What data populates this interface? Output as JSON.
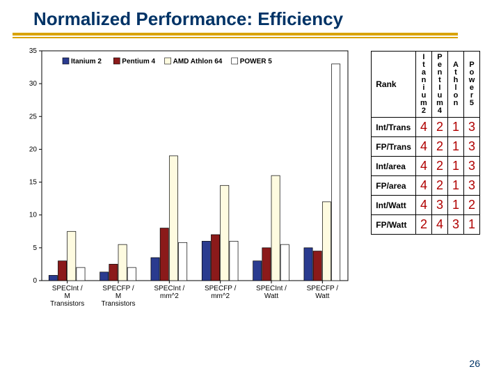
{
  "title": "Normalized Performance: Efficiency",
  "page_number": "26",
  "chart": {
    "type": "bar-grouped",
    "ylim": [
      0,
      35
    ],
    "ytick_step": 5,
    "background_color": "#ffffff",
    "grid_color": "#000000",
    "plot_border_color": "#000000",
    "title_fontsize": 26,
    "axis_fontsize": 10,
    "series": [
      {
        "name": "Itanium 2",
        "color": "#2a3b8f",
        "pattern": "solid"
      },
      {
        "name": "Pentium 4",
        "color": "#8b1a1a",
        "pattern": "solid"
      },
      {
        "name": "AMD Athlon 64",
        "color": "#fefbe0",
        "pattern": "outline"
      },
      {
        "name": "POWER 5",
        "color": "#ffffff",
        "pattern": "outline"
      }
    ],
    "categories": [
      "SPECInt / M Transistors",
      "SPECFP / M Transistors",
      "SPECInt / mm^2",
      "SPECFP / mm^2",
      "SPECInt / Watt",
      "SPECFP / Watt"
    ],
    "values": [
      [
        0.8,
        3.0,
        7.5,
        2.0
      ],
      [
        1.3,
        2.5,
        5.5,
        2.0
      ],
      [
        3.5,
        8.0,
        19.0,
        5.8
      ],
      [
        6.0,
        7.0,
        14.5,
        6.0
      ],
      [
        3.0,
        5.0,
        16.0,
        5.5
      ],
      [
        5.0,
        4.5,
        12.0,
        33.0
      ]
    ],
    "bar_group_width": 0.8,
    "bar_width": 0.18
  },
  "rank_table": {
    "corner_label": "Rank",
    "columns": [
      "Itanium 2",
      "Pentium 4",
      "Athlon",
      "Power 5"
    ],
    "column_short": [
      [
        "I",
        "t",
        "a",
        "n",
        "i",
        "u",
        "m",
        "2"
      ],
      [
        "P",
        "e",
        "n",
        "t",
        "I",
        "u",
        "m",
        "4"
      ],
      [
        "A",
        "t",
        "h",
        "l",
        "o",
        "n"
      ],
      [
        "P",
        "o",
        "w",
        "e",
        "r",
        "5"
      ]
    ],
    "rows": [
      {
        "label": "Int/Trans",
        "cells": [
          "4",
          "2",
          "1",
          "3"
        ]
      },
      {
        "label": "FP/Trans",
        "cells": [
          "4",
          "2",
          "1",
          "3"
        ]
      },
      {
        "label": "Int/area",
        "cells": [
          "4",
          "2",
          "1",
          "3"
        ]
      },
      {
        "label": "FP/area",
        "cells": [
          "4",
          "2",
          "1",
          "3"
        ]
      },
      {
        "label": "Int/Watt",
        "cells": [
          "4",
          "3",
          "1",
          "2"
        ]
      },
      {
        "label": "FP/Watt",
        "cells": [
          "2",
          "4",
          "3",
          "1"
        ]
      }
    ],
    "value_color": "#b00000"
  }
}
